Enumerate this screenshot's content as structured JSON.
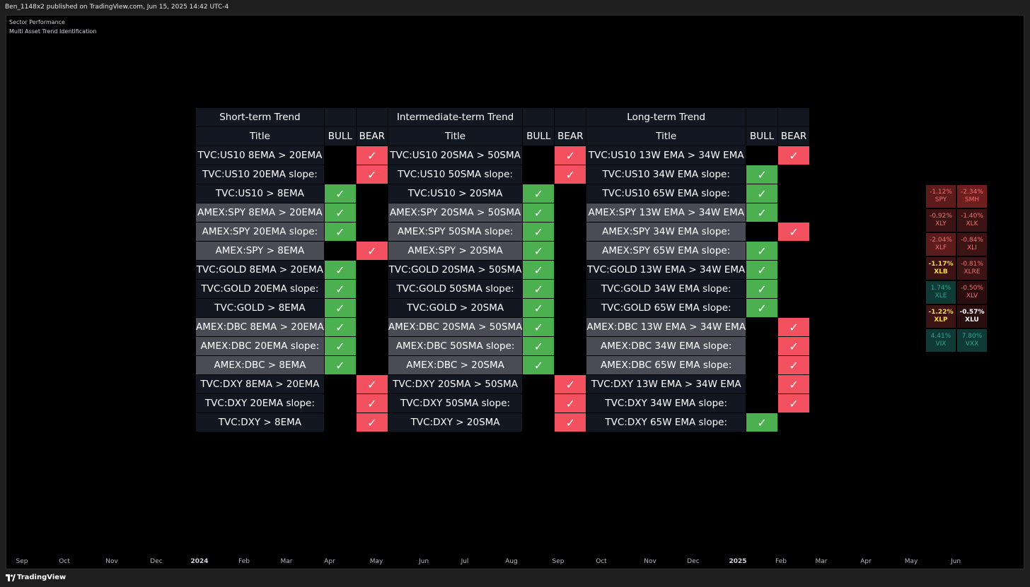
{
  "topbar": {
    "text": "Ben_1148x2 published on TradingView.com, Jun 15, 2025 14:42 UTC-4"
  },
  "chart": {
    "name_line1": "Sector Performance",
    "name_line2": "Multi Asset Trend Identification"
  },
  "table": {
    "group_headers": [
      "Short-term Trend",
      "Intermediate-term Trend",
      "Long-term Trend"
    ],
    "col_headers": [
      "Title",
      "BULL",
      "BEAR"
    ],
    "check_glyph": "✓",
    "rows": [
      {
        "shade": "dark",
        "s": [
          "TVC:US10 8EMA > 20EMA",
          "bear"
        ],
        "i": [
          "TVC:US10 20SMA > 50SMA",
          "bear"
        ],
        "l": [
          "TVC:US10 13W EMA > 34W EMA",
          "bear"
        ]
      },
      {
        "shade": "dark",
        "s": [
          "TVC:US10 20EMA slope:",
          "bear"
        ],
        "i": [
          "TVC:US10 50SMA slope:",
          "bear"
        ],
        "l": [
          "TVC:US10 34W EMA slope:",
          "bull"
        ]
      },
      {
        "shade": "dark",
        "s": [
          "TVC:US10 > 8EMA",
          "bull"
        ],
        "i": [
          "TVC:US10 > 20SMA",
          "bull"
        ],
        "l": [
          "TVC:US10 65W EMA slope:",
          "bull"
        ]
      },
      {
        "shade": "gray",
        "s": [
          "AMEX:SPY 8EMA > 20EMA",
          "bull"
        ],
        "i": [
          "AMEX:SPY 20SMA > 50SMA",
          "bull"
        ],
        "l": [
          "AMEX:SPY 13W EMA > 34W EMA",
          "bull"
        ]
      },
      {
        "shade": "gray",
        "s": [
          "AMEX:SPY 20EMA slope:",
          "bull"
        ],
        "i": [
          "AMEX:SPY 50SMA slope:",
          "bull"
        ],
        "l": [
          "AMEX:SPY 34W EMA slope:",
          "bear"
        ]
      },
      {
        "shade": "gray",
        "s": [
          "AMEX:SPY > 8EMA",
          "bear"
        ],
        "i": [
          "AMEX:SPY > 20SMA",
          "bull"
        ],
        "l": [
          "AMEX:SPY 65W EMA slope:",
          "bull"
        ]
      },
      {
        "shade": "dark",
        "s": [
          "TVC:GOLD 8EMA > 20EMA",
          "bull"
        ],
        "i": [
          "TVC:GOLD 20SMA > 50SMA",
          "bull"
        ],
        "l": [
          "TVC:GOLD 13W EMA > 34W EMA",
          "bull"
        ]
      },
      {
        "shade": "dark",
        "s": [
          "TVC:GOLD 20EMA slope:",
          "bull"
        ],
        "i": [
          "TVC:GOLD 50SMA slope:",
          "bull"
        ],
        "l": [
          "TVC:GOLD 34W EMA slope:",
          "bull"
        ]
      },
      {
        "shade": "dark",
        "s": [
          "TVC:GOLD > 8EMA",
          "bull"
        ],
        "i": [
          "TVC:GOLD > 20SMA",
          "bull"
        ],
        "l": [
          "TVC:GOLD 65W EMA slope:",
          "bull"
        ]
      },
      {
        "shade": "gray",
        "s": [
          "AMEX:DBC 8EMA > 20EMA",
          "bull"
        ],
        "i": [
          "AMEX:DBC 20SMA > 50SMA",
          "bull"
        ],
        "l": [
          "AMEX:DBC 13W EMA > 34W EMA",
          "bear"
        ]
      },
      {
        "shade": "gray",
        "s": [
          "AMEX:DBC 20EMA slope:",
          "bull"
        ],
        "i": [
          "AMEX:DBC 50SMA slope:",
          "bull"
        ],
        "l": [
          "AMEX:DBC 34W EMA slope:",
          "bear"
        ]
      },
      {
        "shade": "gray",
        "s": [
          "AMEX:DBC > 8EMA",
          "bull"
        ],
        "i": [
          "AMEX:DBC > 20SMA",
          "bull"
        ],
        "l": [
          "AMEX:DBC 65W EMA slope:",
          "bear"
        ]
      },
      {
        "shade": "dark",
        "s": [
          "TVC:DXY 8EMA > 20EMA",
          "bear"
        ],
        "i": [
          "TVC:DXY 20SMA > 50SMA",
          "bear"
        ],
        "l": [
          "TVC:DXY 13W EMA > 34W EMA",
          "bear"
        ]
      },
      {
        "shade": "dark",
        "s": [
          "TVC:DXY 20EMA slope:",
          "bear"
        ],
        "i": [
          "TVC:DXY 50SMA slope:",
          "bear"
        ],
        "l": [
          "TVC:DXY 34W EMA slope:",
          "bear"
        ]
      },
      {
        "shade": "dark",
        "s": [
          "TVC:DXY > 8EMA",
          "bear"
        ],
        "i": [
          "TVC:DXY > 20SMA",
          "bear"
        ],
        "l": [
          "TVC:DXY 65W EMA slope:",
          "bull"
        ]
      }
    ]
  },
  "sectors": [
    [
      {
        "pct": "-1.12%",
        "ticker": "SPY",
        "bg": "#5c1c1c",
        "fg": "#f07070"
      },
      {
        "pct": "-2.34%",
        "ticker": "SMH",
        "bg": "#6e1e1e",
        "fg": "#f07070"
      }
    ],
    [
      {
        "pct": "-0.92%",
        "ticker": "XLY",
        "bg": "#3d1414",
        "fg": "#f07070"
      },
      {
        "pct": "-1.40%",
        "ticker": "XLK",
        "bg": "#3d1414",
        "fg": "#f07070"
      }
    ],
    [
      {
        "pct": "-2.04%",
        "ticker": "XLF",
        "bg": "#5c1c1c",
        "fg": "#f07070"
      },
      {
        "pct": "-0.84%",
        "ticker": "XLI",
        "bg": "#3d1414",
        "fg": "#f07070"
      }
    ],
    [
      {
        "pct": "-1.17%",
        "ticker": "XLB",
        "bg": "#3d1414",
        "fg": "#ffd54f"
      },
      {
        "pct": "-0.81%",
        "ticker": "XLRE",
        "bg": "#3d1414",
        "fg": "#f07070"
      }
    ],
    [
      {
        "pct": "1.74%",
        "ticker": "XLE",
        "bg": "#0f3a36",
        "fg": "#26a69a"
      },
      {
        "pct": "-0.50%",
        "ticker": "XLV",
        "bg": "#2a0e0e",
        "fg": "#f07070"
      }
    ],
    [
      {
        "pct": "-1.22%",
        "ticker": "XLP",
        "bg": "#3d1414",
        "fg": "#ffd54f"
      },
      {
        "pct": "-0.57%",
        "ticker": "XLU",
        "bg": "#2a0e0e",
        "fg": "#ffffff"
      }
    ],
    [
      {
        "pct": "4.41%",
        "ticker": "VIX",
        "bg": "#0f3a36",
        "fg": "#26a69a"
      },
      {
        "pct": "7.80%",
        "ticker": "VXX",
        "bg": "#0f3a36",
        "fg": "#26a69a"
      }
    ]
  ],
  "time_axis": [
    {
      "label": "Sep",
      "year": false
    },
    {
      "label": "Oct",
      "year": false
    },
    {
      "label": "Nov",
      "year": false
    },
    {
      "label": "Dec",
      "year": false
    },
    {
      "label": "2024",
      "year": true
    },
    {
      "label": "Feb",
      "year": false
    },
    {
      "label": "Mar",
      "year": false
    },
    {
      "label": "Apr",
      "year": false
    },
    {
      "label": "May",
      "year": false
    },
    {
      "label": "Jun",
      "year": false
    },
    {
      "label": "Jul",
      "year": false
    },
    {
      "label": "Aug",
      "year": false
    },
    {
      "label": "Sep",
      "year": false
    },
    {
      "label": "Oct",
      "year": false
    },
    {
      "label": "Nov",
      "year": false
    },
    {
      "label": "Dec",
      "year": false
    },
    {
      "label": "2025",
      "year": true
    },
    {
      "label": "Feb",
      "year": false
    },
    {
      "label": "Mar",
      "year": false
    },
    {
      "label": "Apr",
      "year": false
    },
    {
      "label": "May",
      "year": false
    },
    {
      "label": "Jun",
      "year": false
    }
  ],
  "footer": {
    "brand": "TradingView"
  }
}
